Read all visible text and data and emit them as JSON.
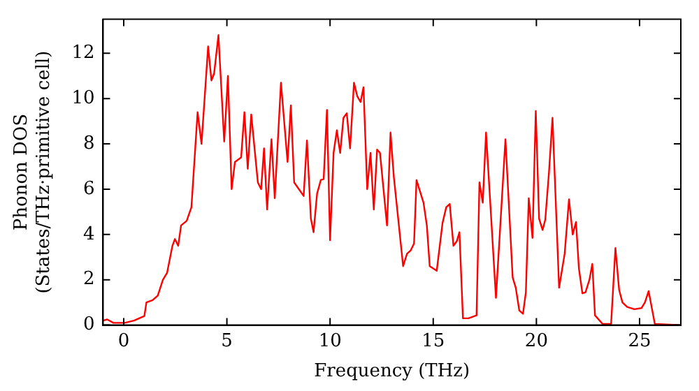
{
  "chart_data": {
    "type": "line",
    "xlabel": "Frequency (THz)",
    "ylabel": "Phonon DOS\n(States/THz·primitive cell)",
    "xlim": [
      -1,
      27
    ],
    "ylim": [
      0,
      13.5
    ],
    "xticks": [
      0,
      5,
      10,
      15,
      20,
      25
    ],
    "yticks": [
      0,
      2,
      4,
      6,
      8,
      10,
      12
    ],
    "grid": false,
    "legend": false,
    "marker": "none",
    "line_style": "solid",
    "series": [
      {
        "color": "#ff0000",
        "x": [
          -1,
          -0.8,
          -0.5,
          0.05,
          0.5,
          1.0,
          1.1,
          1.4,
          1.65,
          1.9,
          2.1,
          2.36,
          2.48,
          2.64,
          2.78,
          3.05,
          3.28,
          3.58,
          3.77,
          4.09,
          4.25,
          4.38,
          4.59,
          4.87,
          5.05,
          5.23,
          5.39,
          5.69,
          5.85,
          6.01,
          6.18,
          6.5,
          6.66,
          6.8,
          6.95,
          7.16,
          7.32,
          7.62,
          7.94,
          8.1,
          8.26,
          8.72,
          8.88,
          9.07,
          9.2,
          9.37,
          9.55,
          9.69,
          9.85,
          10.0,
          10.17,
          10.33,
          10.49,
          10.65,
          10.81,
          10.97,
          11.16,
          11.32,
          11.48,
          11.62,
          11.8,
          11.96,
          12.12,
          12.28,
          12.42,
          12.76,
          12.93,
          13.09,
          13.54,
          13.73,
          13.91,
          14.07,
          14.19,
          14.53,
          14.69,
          14.83,
          15.17,
          15.45,
          15.63,
          15.8,
          15.98,
          16.14,
          16.27,
          16.44,
          16.71,
          17.1,
          17.24,
          17.4,
          17.56,
          18.04,
          18.5,
          18.85,
          19.0,
          19.17,
          19.35,
          19.49,
          19.63,
          19.81,
          19.97,
          20.13,
          20.3,
          20.43,
          20.61,
          20.78,
          21.1,
          21.37,
          21.58,
          21.76,
          21.92,
          22.06,
          22.23,
          22.38,
          22.57,
          22.71,
          22.84,
          23.21,
          23.62,
          23.83,
          24.01,
          24.17,
          24.4,
          24.75,
          25.09,
          25.26,
          25.44,
          25.74,
          27
        ],
        "values": [
          0.2,
          0.25,
          0.1,
          0.1,
          0.2,
          0.4,
          1.0,
          1.1,
          1.3,
          2.0,
          2.3,
          3.5,
          3.8,
          3.5,
          4.4,
          4.6,
          5.2,
          9.4,
          8.0,
          12.3,
          10.8,
          11.1,
          12.8,
          8.1,
          11.0,
          6.0,
          7.2,
          7.4,
          9.4,
          6.9,
          9.3,
          6.3,
          6.0,
          7.8,
          5.1,
          8.2,
          5.6,
          10.7,
          7.2,
          9.7,
          6.3,
          5.7,
          8.15,
          4.7,
          4.1,
          5.8,
          6.4,
          6.45,
          9.5,
          3.75,
          7.6,
          8.6,
          7.6,
          9.15,
          9.35,
          7.8,
          10.7,
          10.1,
          9.85,
          10.5,
          6.0,
          7.6,
          5.1,
          7.75,
          7.6,
          4.4,
          8.5,
          6.55,
          2.6,
          3.15,
          3.3,
          3.6,
          6.4,
          5.4,
          4.4,
          2.6,
          2.4,
          4.5,
          5.2,
          5.35,
          3.5,
          3.7,
          4.1,
          0.3,
          0.3,
          0.43,
          6.3,
          5.4,
          8.5,
          1.2,
          8.2,
          2.1,
          1.65,
          0.65,
          0.5,
          1.45,
          5.6,
          3.85,
          9.45,
          4.7,
          4.2,
          4.65,
          6.75,
          9.15,
          1.65,
          3.15,
          5.55,
          4.0,
          4.55,
          2.5,
          1.4,
          1.45,
          2.0,
          2.7,
          0.43,
          0.05,
          0.05,
          3.4,
          1.55,
          1.0,
          0.8,
          0.7,
          0.75,
          1.0,
          1.5,
          0.05,
          0
        ]
      }
    ]
  }
}
